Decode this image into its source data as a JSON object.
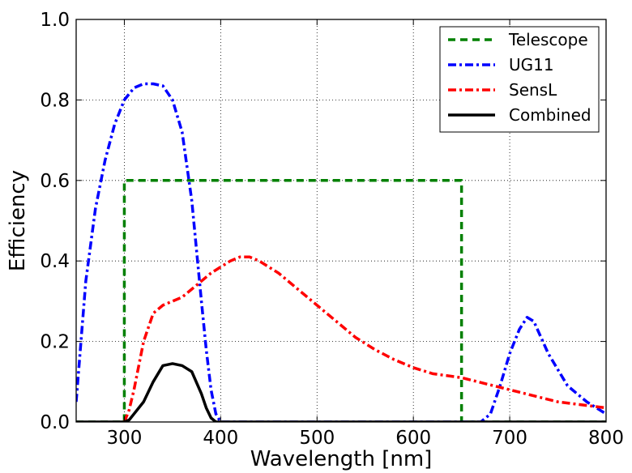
{
  "chart_data": {
    "type": "line",
    "title": "",
    "xlabel": "Wavelength [nm]",
    "ylabel": "Efficiency",
    "xlim": [
      250,
      800
    ],
    "ylim": [
      0.0,
      1.0
    ],
    "grid": true,
    "legend_position": "top-right",
    "x_ticks": [
      300,
      400,
      500,
      600,
      700,
      800
    ],
    "x_tick_labels": [
      "300",
      "400",
      "500",
      "600",
      "700",
      "800"
    ],
    "y_ticks": [
      0.0,
      0.2,
      0.4,
      0.6,
      0.8,
      1.0
    ],
    "y_tick_labels": [
      "0.0",
      "0.2",
      "0.4",
      "0.6",
      "0.8",
      "1.0"
    ],
    "series": [
      {
        "name": "Telescope",
        "color": "#008000",
        "style": "dashed",
        "x": [
          250,
          300,
          300,
          650,
          650,
          800
        ],
        "y": [
          0.0,
          0.0,
          0.6,
          0.6,
          0.0,
          0.0
        ]
      },
      {
        "name": "UG11",
        "color": "#0000ff",
        "style": "dashdot",
        "x": [
          250,
          260,
          270,
          280,
          290,
          300,
          310,
          320,
          330,
          340,
          350,
          360,
          370,
          380,
          385,
          390,
          395,
          400,
          410,
          660,
          670,
          680,
          690,
          700,
          710,
          718,
          725,
          740,
          760,
          780,
          800
        ],
        "y": [
          0.05,
          0.35,
          0.53,
          0.65,
          0.74,
          0.8,
          0.83,
          0.84,
          0.84,
          0.835,
          0.8,
          0.72,
          0.55,
          0.3,
          0.18,
          0.08,
          0.02,
          0.0,
          0.0,
          0.0,
          0.0,
          0.02,
          0.09,
          0.17,
          0.23,
          0.26,
          0.25,
          0.17,
          0.09,
          0.05,
          0.02
        ]
      },
      {
        "name": "SensL",
        "color": "#ff0000",
        "style": "dashdot",
        "x": [
          300,
          305,
          310,
          320,
          330,
          340,
          350,
          360,
          370,
          380,
          390,
          400,
          410,
          420,
          430,
          440,
          460,
          480,
          500,
          520,
          540,
          560,
          580,
          600,
          620,
          650,
          700,
          750,
          800
        ],
        "y": [
          0.0,
          0.03,
          0.08,
          0.2,
          0.27,
          0.29,
          0.3,
          0.31,
          0.33,
          0.35,
          0.37,
          0.385,
          0.4,
          0.41,
          0.41,
          0.4,
          0.37,
          0.33,
          0.29,
          0.25,
          0.21,
          0.18,
          0.155,
          0.135,
          0.12,
          0.11,
          0.08,
          0.05,
          0.035
        ]
      },
      {
        "name": "Combined",
        "color": "#000000",
        "style": "solid",
        "x": [
          250,
          300,
          305,
          310,
          320,
          330,
          340,
          350,
          360,
          370,
          380,
          385,
          390,
          395,
          400,
          800
        ],
        "y": [
          0.0,
          0.0,
          0.005,
          0.02,
          0.05,
          0.1,
          0.14,
          0.145,
          0.14,
          0.125,
          0.07,
          0.035,
          0.01,
          0.0,
          0.0,
          0.0
        ]
      }
    ]
  }
}
